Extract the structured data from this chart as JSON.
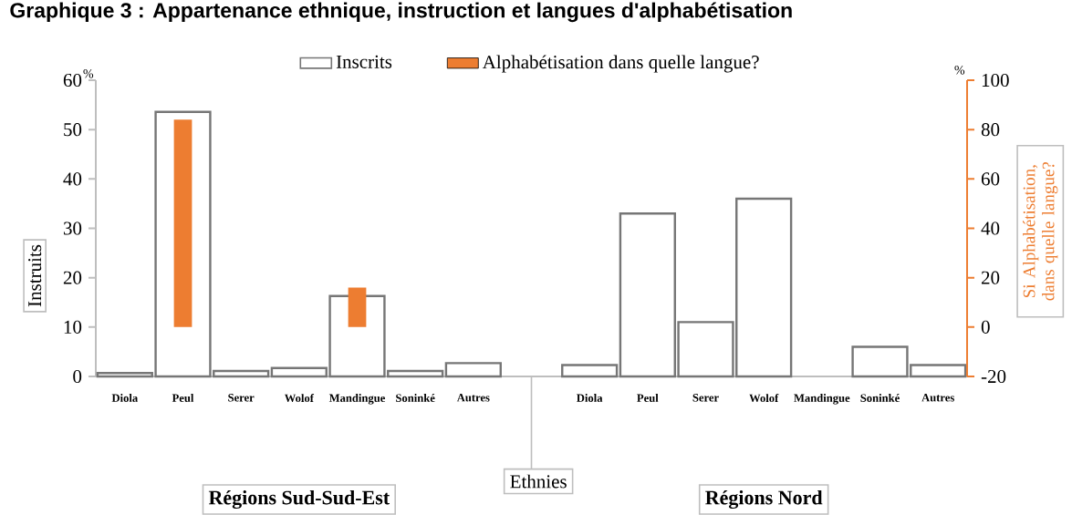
{
  "chart_data": {
    "type": "bar",
    "title": "Graphique 3 : Appartenance ethnique, instruction et langues d'alphabétisation",
    "categories": [
      "Diola",
      "Peul",
      "Serer",
      "Wolof",
      "Mandingue",
      "Soninké",
      "Autres",
      null,
      "Diola",
      "Peul",
      "Serer",
      "Wolof",
      "Mandingue",
      "Soninké",
      "Autres"
    ],
    "xlabel": "Ethnies",
    "ylabel": "Instruits",
    "y2label": "Si Alphabétisation, dans quelle langue?",
    "ylim": [
      0,
      60
    ],
    "yticks": [
      0,
      10,
      20,
      30,
      40,
      50,
      60
    ],
    "y2lim": [
      -20,
      100
    ],
    "y2ticks": [
      -20,
      0,
      20,
      40,
      60,
      80,
      100
    ],
    "legend": "top",
    "annotations": [
      "%",
      "%",
      "Régions Sud-Sud-Est",
      "Régions Nord"
    ],
    "series": [
      {
        "name": "Inscrits",
        "color": "#ffffff",
        "values": [
          0.7,
          53.6,
          1.1,
          1.7,
          16.3,
          1.1,
          2.7,
          null,
          2.3,
          33,
          11,
          36,
          null,
          6,
          2.3
        ]
      },
      {
        "name": "Alphabétisation dans quelle langue?",
        "color": "#ed7d31",
        "axis": "y2",
        "values": [
          null,
          84,
          null,
          null,
          16,
          null,
          null,
          null,
          null,
          null,
          null,
          null,
          null,
          null,
          null
        ]
      }
    ]
  }
}
